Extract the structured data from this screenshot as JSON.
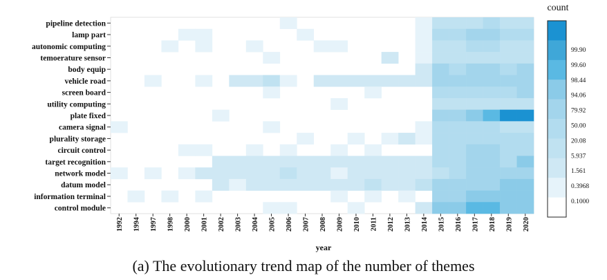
{
  "caption": "(a) The evolutionary trend map of the number of themes",
  "chart_data": {
    "type": "heatmap",
    "xlabel": "year",
    "legend_title": "count",
    "legend_labels": [
      "99.90",
      "99.60",
      "98.44",
      "94.06",
      "79.92",
      "50.00",
      "20.08",
      "5.937",
      "1.561",
      "0.3968",
      "0.1000"
    ],
    "x": [
      "1992",
      "1994",
      "1997",
      "1998",
      "2000",
      "2001",
      "2002",
      "2003",
      "2004",
      "2005",
      "2006",
      "2007",
      "2008",
      "2009",
      "2010",
      "2011",
      "2012",
      "2013",
      "2014",
      "2015",
      "2016",
      "2017",
      "2018",
      "2019",
      "2020"
    ],
    "y": [
      "pipeline detection",
      "lamp part",
      "autonomic computing",
      "temoerature sensor",
      "body equip",
      "vehicle road",
      "screen board",
      "utility computing",
      "plate fixed",
      "camera signal",
      "plurality storage",
      "circuit control",
      "target recognition",
      "network model",
      "datum model",
      "information terminal",
      "control module"
    ],
    "values": [
      [
        0,
        0,
        0,
        0,
        0,
        0,
        0,
        0,
        0,
        0,
        1,
        0,
        0,
        0,
        0,
        0,
        0,
        0,
        1,
        3,
        3,
        3,
        4,
        3,
        3
      ],
      [
        0,
        0,
        0,
        0,
        1,
        1,
        0,
        0,
        0,
        0,
        0,
        1,
        0,
        0,
        0,
        0,
        0,
        0,
        1,
        4,
        4,
        5,
        5,
        4,
        4
      ],
      [
        0,
        0,
        0,
        1,
        0,
        1,
        0,
        0,
        1,
        0,
        0,
        0,
        1,
        1,
        0,
        0,
        0,
        0,
        1,
        3,
        3,
        4,
        4,
        3,
        3
      ],
      [
        0,
        0,
        0,
        0,
        0,
        0,
        0,
        0,
        0,
        1,
        0,
        0,
        0,
        0,
        0,
        0,
        2,
        0,
        1,
        3,
        3,
        3,
        3,
        3,
        3
      ],
      [
        0,
        0,
        0,
        0,
        0,
        0,
        0,
        0,
        0,
        0,
        0,
        0,
        0,
        0,
        0,
        0,
        0,
        0,
        2,
        5,
        4,
        5,
        5,
        4,
        5
      ],
      [
        0,
        0,
        1,
        0,
        0,
        1,
        0,
        2,
        2,
        3,
        1,
        0,
        2,
        2,
        2,
        2,
        2,
        2,
        2,
        5,
        5,
        5,
        5,
        5,
        5
      ],
      [
        0,
        0,
        0,
        0,
        0,
        0,
        0,
        0,
        0,
        1,
        0,
        0,
        0,
        0,
        0,
        1,
        0,
        0,
        0,
        4,
        4,
        4,
        4,
        4,
        5
      ],
      [
        0,
        0,
        0,
        0,
        0,
        0,
        0,
        0,
        0,
        0,
        0,
        0,
        0,
        1,
        0,
        0,
        0,
        0,
        0,
        3,
        3,
        3,
        3,
        3,
        3
      ],
      [
        0,
        0,
        0,
        0,
        0,
        0,
        1,
        0,
        0,
        0,
        0,
        0,
        0,
        0,
        0,
        0,
        0,
        0,
        0,
        5,
        5,
        6,
        7,
        9,
        9
      ],
      [
        1,
        0,
        0,
        0,
        0,
        0,
        0,
        0,
        0,
        1,
        0,
        0,
        0,
        0,
        0,
        0,
        0,
        0,
        1,
        4,
        4,
        4,
        4,
        3,
        3
      ],
      [
        0,
        0,
        0,
        0,
        0,
        0,
        0,
        0,
        0,
        0,
        0,
        1,
        0,
        0,
        1,
        0,
        1,
        2,
        1,
        4,
        4,
        4,
        4,
        4,
        4
      ],
      [
        0,
        0,
        0,
        0,
        1,
        1,
        0,
        0,
        1,
        0,
        1,
        0,
        0,
        1,
        0,
        1,
        0,
        0,
        0,
        4,
        4,
        5,
        5,
        4,
        4
      ],
      [
        0,
        0,
        0,
        0,
        0,
        0,
        2,
        2,
        2,
        2,
        2,
        2,
        2,
        2,
        2,
        2,
        2,
        2,
        2,
        4,
        4,
        5,
        5,
        4,
        6
      ],
      [
        1,
        0,
        1,
        0,
        1,
        2,
        2,
        2,
        2,
        2,
        3,
        2,
        2,
        1,
        2,
        2,
        2,
        2,
        2,
        3,
        4,
        5,
        5,
        5,
        5
      ],
      [
        0,
        0,
        0,
        0,
        0,
        0,
        2,
        1,
        2,
        2,
        2,
        2,
        2,
        2,
        2,
        3,
        2,
        2,
        3,
        5,
        5,
        5,
        5,
        6,
        6
      ],
      [
        0,
        1,
        0,
        1,
        0,
        1,
        0,
        0,
        0,
        0,
        0,
        0,
        0,
        1,
        0,
        1,
        0,
        1,
        0,
        5,
        5,
        6,
        6,
        6,
        6
      ],
      [
        0,
        0,
        0,
        0,
        0,
        0,
        0,
        0,
        0,
        1,
        1,
        0,
        0,
        0,
        1,
        0,
        0,
        0,
        2,
        6,
        6,
        7,
        7,
        6,
        6
      ]
    ],
    "value_scale": "ordinal color levels 0-9 (0 = lightest/empty, 9 = darkest)",
    "colors": [
      "#ffffff",
      "#e6f3fa",
      "#cfe8f4",
      "#c0e2f1",
      "#b2dcef",
      "#a3d5ec",
      "#8bcbe8",
      "#5ab9e3",
      "#3fa7d8",
      "#1b92d2"
    ]
  }
}
